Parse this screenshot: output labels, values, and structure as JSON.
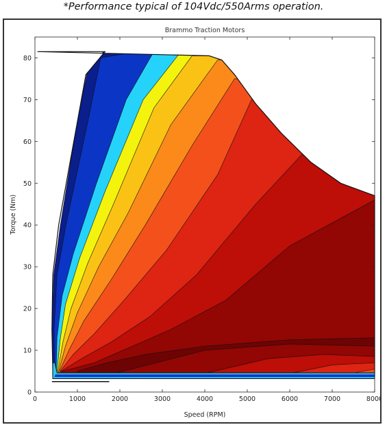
{
  "caption": "*Performance typical of 104Vdc/550Arms operation.",
  "chart_data": {
    "type": "contour",
    "title": "Brammo Traction Motors",
    "xlabel": "Speed (RPM)",
    "ylabel": "Torque (Nm)",
    "xlim": [
      0,
      8000
    ],
    "ylim": [
      0,
      85
    ],
    "xticks": [
      0,
      1000,
      2000,
      3000,
      4000,
      5000,
      6000,
      7000,
      8000
    ],
    "yticks": [
      0,
      10,
      20,
      30,
      40,
      50,
      60,
      70,
      80
    ],
    "grid": false,
    "operating_envelope": [
      {
        "x": 60,
        "y": 81.5
      },
      {
        "x": 4100,
        "y": 80.5
      },
      {
        "x": 4400,
        "y": 79.5
      },
      {
        "x": 4700,
        "y": 76
      },
      {
        "x": 5200,
        "y": 69
      },
      {
        "x": 5800,
        "y": 62
      },
      {
        "x": 6500,
        "y": 55
      },
      {
        "x": 7200,
        "y": 50
      },
      {
        "x": 8000,
        "y": 47
      },
      {
        "x": 8000,
        "y": 3.8
      },
      {
        "x": 420,
        "y": 3.8
      },
      {
        "x": 420,
        "y": 5.5
      },
      {
        "x": 400,
        "y": 15
      },
      {
        "x": 420,
        "y": 28
      },
      {
        "x": 560,
        "y": 40
      },
      {
        "x": 1200,
        "y": 76
      },
      {
        "x": 1650,
        "y": 81.5
      }
    ],
    "efficiency_bands": [
      {
        "level": "band-1",
        "color": "#0a1e8c",
        "boundary": [
          [
            420,
            5
          ],
          [
            400,
            15
          ],
          [
            440,
            28
          ],
          [
            600,
            40
          ],
          [
            1000,
            65
          ],
          [
            1300,
            80
          ],
          [
            1650,
            81.5
          ]
        ]
      },
      {
        "level": "band-2",
        "color": "#0b35c4",
        "boundary": [
          [
            460,
            5
          ],
          [
            450,
            15
          ],
          [
            520,
            28
          ],
          [
            730,
            40
          ],
          [
            1250,
            65
          ],
          [
            1550,
            80
          ],
          [
            2400,
            81.5
          ]
        ]
      },
      {
        "level": "band-3",
        "color": "#25d3fa",
        "boundary": [
          [
            500,
            5
          ],
          [
            520,
            13
          ],
          [
            640,
            23
          ],
          [
            900,
            33
          ],
          [
            1450,
            50
          ],
          [
            2150,
            70
          ],
          [
            2800,
            81.5
          ]
        ]
      },
      {
        "level": "band-4",
        "color": "#f3f30e",
        "boundary": [
          [
            520,
            5
          ],
          [
            600,
            13
          ],
          [
            720,
            21
          ],
          [
            1050,
            32
          ],
          [
            1650,
            48
          ],
          [
            2550,
            70
          ],
          [
            3400,
            81
          ]
        ]
      },
      {
        "level": "band-5",
        "color": "#fbc216",
        "boundary": [
          [
            540,
            5
          ],
          [
            660,
            12
          ],
          [
            850,
            20
          ],
          [
            1250,
            31
          ],
          [
            1850,
            45
          ],
          [
            2800,
            68
          ],
          [
            3700,
            80.5
          ]
        ]
      },
      {
        "level": "band-6",
        "color": "#fb8a1a",
        "boundary": [
          [
            560,
            5
          ],
          [
            720,
            11
          ],
          [
            1000,
            19
          ],
          [
            1500,
            30
          ],
          [
            2200,
            43
          ],
          [
            3200,
            64
          ],
          [
            4300,
            79.5
          ]
        ]
      },
      {
        "level": "band-7",
        "color": "#f4501c",
        "boundary": [
          [
            580,
            5
          ],
          [
            800,
            10
          ],
          [
            1150,
            17
          ],
          [
            1800,
            27
          ],
          [
            2600,
            40
          ],
          [
            3700,
            59
          ],
          [
            4700,
            75
          ]
        ]
      },
      {
        "level": "band-8",
        "color": "#de2412",
        "boundary": [
          [
            600,
            5
          ],
          [
            900,
            9
          ],
          [
            1400,
            14
          ],
          [
            2100,
            22
          ],
          [
            3100,
            34
          ],
          [
            4300,
            52
          ],
          [
            5100,
            70
          ]
        ]
      },
      {
        "level": "band-9",
        "color": "#bd0e08",
        "boundary": [
          [
            620,
            5
          ],
          [
            1100,
            8
          ],
          [
            1800,
            12
          ],
          [
            2700,
            18
          ],
          [
            3800,
            28
          ],
          [
            5200,
            45
          ],
          [
            6300,
            57
          ]
        ]
      },
      {
        "level": "band-10",
        "color": "#920603",
        "boundary": [
          [
            650,
            5
          ],
          [
            1400,
            7
          ],
          [
            2300,
            11
          ],
          [
            3200,
            15
          ],
          [
            4500,
            22
          ],
          [
            6000,
            35
          ],
          [
            8000,
            46
          ]
        ]
      },
      {
        "level": "band-11",
        "color": "#6e0303",
        "boundary": [
          [
            1000,
            5
          ],
          [
            1700,
            7
          ],
          [
            2600,
            9
          ],
          [
            4000,
            11
          ],
          [
            6000,
            12.5
          ],
          [
            8000,
            13
          ]
        ]
      }
    ],
    "lower_bands": [
      {
        "level": "band-10",
        "color": "#920603",
        "boundary": [
          [
            1700,
            4
          ],
          [
            4000,
            10
          ],
          [
            6000,
            11.5
          ],
          [
            8000,
            11
          ]
        ]
      },
      {
        "level": "band-9",
        "color": "#bd0e08",
        "boundary": [
          [
            3800,
            4
          ],
          [
            5500,
            8
          ],
          [
            6800,
            9
          ],
          [
            8000,
            8.5
          ]
        ]
      },
      {
        "level": "band-8",
        "color": "#de2412",
        "boundary": [
          [
            5800,
            4
          ],
          [
            7000,
            6.5
          ],
          [
            8000,
            7
          ]
        ]
      },
      {
        "level": "band-7",
        "color": "#f4501c",
        "boundary": [
          [
            7200,
            4
          ],
          [
            8000,
            5.5
          ]
        ]
      }
    ]
  }
}
